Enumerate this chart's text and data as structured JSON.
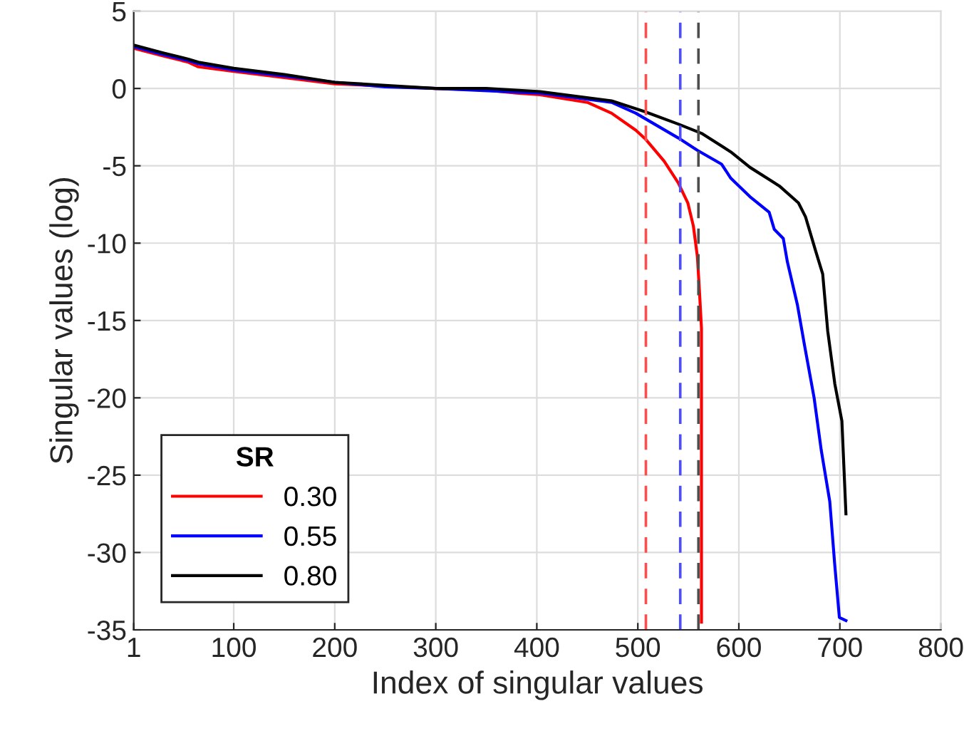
{
  "chart_data": {
    "type": "line",
    "xlabel": "Index of singular values",
    "ylabel": "Singular values (log)",
    "legend_title": "SR",
    "legend": "bottom left",
    "grid": true,
    "line_style": "solid",
    "xlim": [
      1,
      800
    ],
    "xticks": [
      1,
      100,
      200,
      300,
      400,
      500,
      600,
      700,
      800
    ],
    "ylim": [
      -35,
      5
    ],
    "yticks": [
      -35,
      -30,
      -25,
      -20,
      -15,
      -10,
      -5,
      0,
      5
    ],
    "series": [
      {
        "name": "0.30",
        "color": "#ff0000",
        "x": [
          1,
          30,
          55,
          65,
          100,
          150,
          200,
          300,
          350,
          380,
          403,
          450,
          474,
          498,
          508,
          526,
          540,
          549.5,
          555,
          559,
          561,
          563,
          563
        ],
        "values": [
          2.6,
          2.1,
          1.7,
          1.4,
          1.1,
          0.7,
          0.3,
          0,
          -0.1,
          -0.3,
          -0.4,
          -0.9,
          -1.6,
          -2.7,
          -3.3,
          -4.7,
          -6.1,
          -7.4,
          -8.9,
          -10.9,
          -13.1,
          -15.5,
          -34.5
        ]
      },
      {
        "name": "0.55",
        "color": "#0000ff",
        "x": [
          1,
          30,
          55,
          65,
          100,
          150,
          200,
          250,
          300,
          403,
          474,
          498,
          540,
          559,
          583,
          592,
          611,
          630,
          635,
          644,
          648,
          658,
          665,
          674.5,
          681.6,
          690,
          694.8,
          699.5,
          706
        ],
        "values": [
          2.7,
          2.2,
          1.8,
          1.6,
          1.2,
          0.8,
          0.4,
          0.1,
          0,
          -0.3,
          -0.9,
          -1.6,
          -3.2,
          -4.0,
          -4.9,
          -5.8,
          -7.0,
          -8.0,
          -9.1,
          -9.7,
          -11.2,
          -14.0,
          -16.6,
          -20.0,
          -23.4,
          -26.7,
          -30.7,
          -34.2,
          -34.4
        ]
      },
      {
        "name": "0.80",
        "color": "#000000",
        "x": [
          1,
          30,
          55,
          65,
          100,
          150,
          200,
          250,
          300,
          350,
          403,
          474,
          507,
          540,
          563,
          592,
          611,
          640,
          659,
          666,
          676,
          683,
          688,
          695,
          702,
          706
        ],
        "values": [
          2.8,
          2.3,
          1.9,
          1.7,
          1.3,
          0.9,
          0.4,
          0.2,
          0,
          0,
          -0.2,
          -0.8,
          -1.5,
          -2.3,
          -2.9,
          -4.1,
          -5.1,
          -6.3,
          -7.4,
          -8.3,
          -10.5,
          -12.0,
          -15.7,
          -19.1,
          -21.5,
          -27.5
        ]
      }
    ],
    "ref_lines": [
      {
        "axis": "x",
        "value": 508,
        "color": "#ff4d4d",
        "line_style": "dashed"
      },
      {
        "axis": "x",
        "value": 542,
        "color": "#4d4dff",
        "line_style": "dashed"
      },
      {
        "axis": "x",
        "value": 560,
        "color": "#4d4d4d",
        "line_style": "dashed"
      }
    ]
  }
}
